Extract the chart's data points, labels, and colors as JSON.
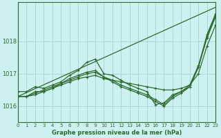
{
  "background_color": "#cdf0f0",
  "grid_color": "#a8d8d8",
  "line_color": "#2d6a2d",
  "title": "Graphe pression niveau de la mer (hPa)",
  "xlim": [
    0,
    23
  ],
  "ylim": [
    1015.5,
    1019.2
  ],
  "yticks": [
    1016,
    1017,
    1018
  ],
  "xticks": [
    0,
    1,
    2,
    3,
    4,
    5,
    6,
    7,
    8,
    9,
    10,
    11,
    12,
    13,
    14,
    15,
    16,
    17,
    18,
    19,
    20,
    21,
    22,
    23
  ],
  "series": [
    {
      "x": [
        0,
        23
      ],
      "y": [
        1016.3,
        1019.05
      ],
      "marker": null,
      "linewidth": 0.9
    },
    {
      "x": [
        0,
        1,
        2,
        3,
        4,
        5,
        6,
        7,
        8,
        9,
        10,
        11,
        12,
        13,
        14,
        15,
        16,
        17,
        18,
        19,
        20,
        21,
        22,
        23
      ],
      "y": [
        1016.45,
        1016.45,
        1016.6,
        1016.55,
        1016.65,
        1016.75,
        1016.95,
        1017.1,
        1017.35,
        1017.45,
        1017.0,
        1016.95,
        1016.8,
        1016.65,
        1016.55,
        1016.45,
        1016.05,
        1016.1,
        1016.35,
        1016.45,
        1016.6,
        1017.2,
        1018.2,
        1018.85
      ],
      "marker": "+",
      "linewidth": 0.9
    },
    {
      "x": [
        0,
        1,
        2,
        3,
        4,
        5,
        6,
        7,
        8,
        9,
        10,
        11,
        12,
        13,
        14,
        15,
        16,
        17,
        18,
        19,
        20,
        21,
        22,
        23
      ],
      "y": [
        1016.3,
        1016.3,
        1016.45,
        1016.45,
        1016.55,
        1016.65,
        1016.75,
        1016.85,
        1016.9,
        1016.95,
        1016.85,
        1016.8,
        1016.75,
        1016.7,
        1016.65,
        1016.6,
        1016.55,
        1016.5,
        1016.5,
        1016.55,
        1016.65,
        1017.0,
        1017.85,
        1018.5
      ],
      "marker": "+",
      "linewidth": 0.9
    },
    {
      "x": [
        0,
        1,
        2,
        3,
        4,
        5,
        6,
        7,
        8,
        9,
        10,
        11,
        12,
        13,
        14,
        15,
        16,
        17,
        18,
        19,
        20,
        21,
        22,
        23
      ],
      "y": [
        1016.3,
        1016.3,
        1016.35,
        1016.45,
        1016.55,
        1016.7,
        1016.8,
        1016.9,
        1017.0,
        1017.05,
        1016.9,
        1016.8,
        1016.65,
        1016.55,
        1016.45,
        1016.35,
        1016.2,
        1016.05,
        1016.3,
        1016.45,
        1016.65,
        1017.25,
        1018.15,
        1018.8
      ],
      "marker": "+",
      "linewidth": 0.9
    },
    {
      "x": [
        0,
        1,
        2,
        3,
        4,
        5,
        6,
        7,
        8,
        9,
        10,
        11,
        12,
        13,
        14,
        15,
        16,
        17,
        18,
        19,
        20,
        21,
        22,
        23
      ],
      "y": [
        1016.3,
        1016.3,
        1016.4,
        1016.5,
        1016.6,
        1016.7,
        1016.85,
        1016.95,
        1017.05,
        1017.1,
        1016.9,
        1016.75,
        1016.6,
        1016.5,
        1016.4,
        1016.3,
        1016.15,
        1016.0,
        1016.25,
        1016.4,
        1016.6,
        1017.2,
        1018.1,
        1018.75
      ],
      "marker": "+",
      "linewidth": 0.9
    }
  ]
}
